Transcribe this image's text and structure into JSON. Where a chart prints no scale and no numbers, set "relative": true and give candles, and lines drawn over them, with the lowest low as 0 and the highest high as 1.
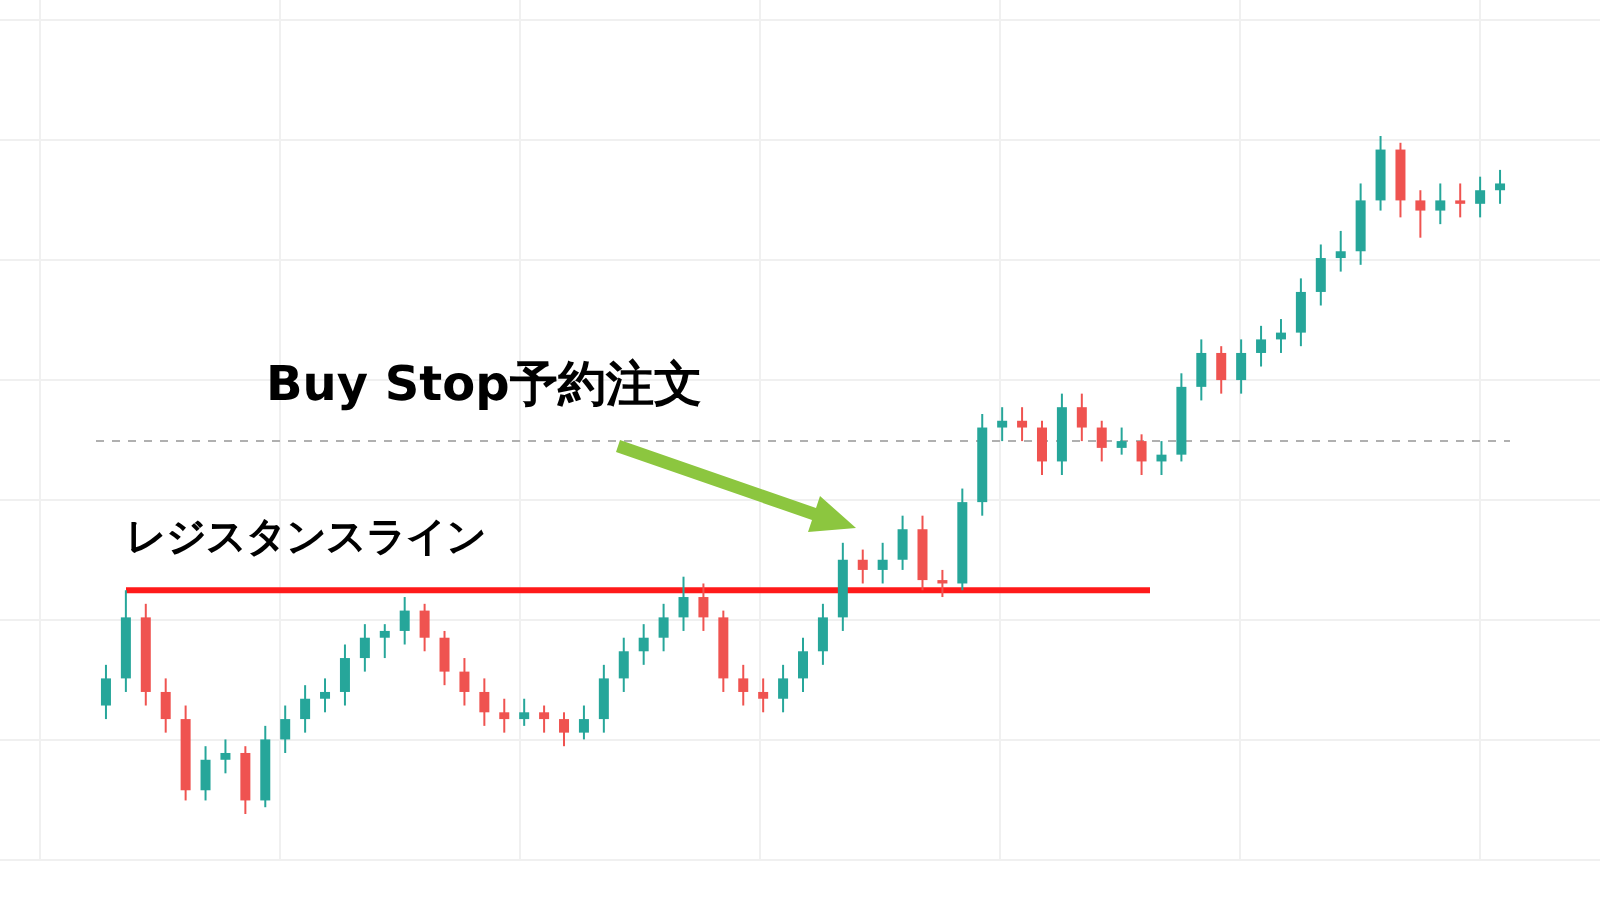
{
  "chart_data": {
    "type": "candlestick",
    "relative": true,
    "grid": true,
    "categories": [
      null,
      null,
      null,
      null,
      null,
      null,
      null,
      null,
      null,
      null,
      null,
      null,
      null,
      null,
      null,
      null,
      null,
      null,
      null,
      null,
      null,
      null,
      null,
      null,
      null,
      null,
      null,
      null,
      null,
      null,
      null,
      null,
      null,
      null,
      null,
      null,
      null,
      null,
      null,
      null,
      null,
      null,
      null,
      null,
      null,
      null,
      null,
      null,
      null,
      null,
      null,
      null,
      null,
      null,
      null,
      null,
      null,
      null,
      null,
      null,
      null,
      null,
      null,
      null,
      null,
      null,
      null,
      null,
      null,
      null,
      null
    ],
    "ohlc": [
      [
        0.16,
        0.22,
        0.14,
        0.2
      ],
      [
        0.2,
        0.33,
        0.18,
        0.29
      ],
      [
        0.29,
        0.31,
        0.16,
        0.18
      ],
      [
        0.18,
        0.2,
        0.12,
        0.14
      ],
      [
        0.14,
        0.16,
        0.02,
        0.035
      ],
      [
        0.035,
        0.1,
        0.02,
        0.08
      ],
      [
        0.08,
        0.11,
        0.06,
        0.09
      ],
      [
        0.09,
        0.1,
        0.0,
        0.02
      ],
      [
        0.02,
        0.13,
        0.01,
        0.11
      ],
      [
        0.11,
        0.16,
        0.09,
        0.14
      ],
      [
        0.14,
        0.19,
        0.12,
        0.17
      ],
      [
        0.17,
        0.2,
        0.15,
        0.18
      ],
      [
        0.18,
        0.25,
        0.16,
        0.23
      ],
      [
        0.23,
        0.28,
        0.21,
        0.26
      ],
      [
        0.26,
        0.28,
        0.23,
        0.27
      ],
      [
        0.27,
        0.32,
        0.25,
        0.3
      ],
      [
        0.3,
        0.31,
        0.24,
        0.26
      ],
      [
        0.26,
        0.27,
        0.19,
        0.21
      ],
      [
        0.21,
        0.23,
        0.16,
        0.18
      ],
      [
        0.18,
        0.2,
        0.13,
        0.15
      ],
      [
        0.15,
        0.17,
        0.12,
        0.14
      ],
      [
        0.14,
        0.17,
        0.13,
        0.15
      ],
      [
        0.15,
        0.16,
        0.12,
        0.14
      ],
      [
        0.14,
        0.15,
        0.1,
        0.12
      ],
      [
        0.12,
        0.16,
        0.11,
        0.14
      ],
      [
        0.14,
        0.22,
        0.12,
        0.2
      ],
      [
        0.2,
        0.26,
        0.18,
        0.24
      ],
      [
        0.24,
        0.28,
        0.22,
        0.26
      ],
      [
        0.26,
        0.31,
        0.24,
        0.29
      ],
      [
        0.29,
        0.35,
        0.27,
        0.32
      ],
      [
        0.32,
        0.34,
        0.27,
        0.29
      ],
      [
        0.29,
        0.3,
        0.18,
        0.2
      ],
      [
        0.2,
        0.22,
        0.16,
        0.18
      ],
      [
        0.18,
        0.2,
        0.15,
        0.17
      ],
      [
        0.17,
        0.22,
        0.15,
        0.2
      ],
      [
        0.2,
        0.26,
        0.18,
        0.24
      ],
      [
        0.24,
        0.31,
        0.22,
        0.29
      ],
      [
        0.29,
        0.4,
        0.27,
        0.375
      ],
      [
        0.375,
        0.39,
        0.34,
        0.36
      ],
      [
        0.36,
        0.4,
        0.34,
        0.375
      ],
      [
        0.375,
        0.44,
        0.36,
        0.42
      ],
      [
        0.42,
        0.44,
        0.33,
        0.345
      ],
      [
        0.345,
        0.36,
        0.32,
        0.34
      ],
      [
        0.34,
        0.48,
        0.33,
        0.46
      ],
      [
        0.46,
        0.59,
        0.44,
        0.57
      ],
      [
        0.57,
        0.6,
        0.55,
        0.58
      ],
      [
        0.58,
        0.6,
        0.55,
        0.57
      ],
      [
        0.57,
        0.58,
        0.5,
        0.52
      ],
      [
        0.52,
        0.62,
        0.5,
        0.6
      ],
      [
        0.6,
        0.62,
        0.55,
        0.57
      ],
      [
        0.57,
        0.58,
        0.52,
        0.54
      ],
      [
        0.54,
        0.57,
        0.53,
        0.55
      ],
      [
        0.55,
        0.56,
        0.5,
        0.52
      ],
      [
        0.52,
        0.55,
        0.5,
        0.53
      ],
      [
        0.53,
        0.65,
        0.52,
        0.63
      ],
      [
        0.63,
        0.7,
        0.61,
        0.68
      ],
      [
        0.68,
        0.69,
        0.62,
        0.64
      ],
      [
        0.64,
        0.7,
        0.62,
        0.68
      ],
      [
        0.68,
        0.72,
        0.66,
        0.7
      ],
      [
        0.7,
        0.73,
        0.68,
        0.71
      ],
      [
        0.71,
        0.79,
        0.69,
        0.77
      ],
      [
        0.77,
        0.84,
        0.75,
        0.82
      ],
      [
        0.82,
        0.86,
        0.8,
        0.83
      ],
      [
        0.83,
        0.93,
        0.81,
        0.905
      ],
      [
        0.905,
        1.0,
        0.89,
        0.98
      ],
      [
        0.98,
        0.99,
        0.88,
        0.905
      ],
      [
        0.905,
        0.92,
        0.85,
        0.89
      ],
      [
        0.89,
        0.93,
        0.87,
        0.905
      ],
      [
        0.905,
        0.93,
        0.88,
        0.9
      ],
      [
        0.9,
        0.94,
        0.88,
        0.92
      ],
      [
        0.92,
        0.95,
        0.9,
        0.93
      ]
    ],
    "colors": [
      "#26a69a",
      "#26a69a",
      "#ef5350",
      "#ef5350",
      "#ef5350",
      "#26a69a",
      "#26a69a",
      "#ef5350",
      "#26a69a",
      "#26a69a",
      "#26a69a",
      "#26a69a",
      "#26a69a",
      "#26a69a",
      "#26a69a",
      "#26a69a",
      "#ef5350",
      "#ef5350",
      "#ef5350",
      "#ef5350",
      "#ef5350",
      "#26a69a",
      "#ef5350",
      "#ef5350",
      "#26a69a",
      "#26a69a",
      "#26a69a",
      "#26a69a",
      "#26a69a",
      "#26a69a",
      "#ef5350",
      "#ef5350",
      "#ef5350",
      "#ef5350",
      "#26a69a",
      "#26a69a",
      "#26a69a",
      "#26a69a",
      "#ef5350",
      "#26a69a",
      "#26a69a",
      "#ef5350",
      "#ef5350",
      "#26a69a",
      "#26a69a",
      "#26a69a",
      "#ef5350",
      "#ef5350",
      "#26a69a",
      "#ef5350",
      "#ef5350",
      "#26a69a",
      "#ef5350",
      "#26a69a",
      "#26a69a",
      "#26a69a",
      "#ef5350",
      "#26a69a",
      "#26a69a",
      "#26a69a",
      "#26a69a",
      "#26a69a",
      "#26a69a",
      "#26a69a",
      "#26a69a",
      "#ef5350",
      "#ef5350",
      "#26a69a",
      "#ef5350",
      "#26a69a",
      "#26a69a"
    ],
    "ref_lines": [
      {
        "axis": "y",
        "value": 0.33,
        "label": "レジスタンスライン",
        "color": "#ff1a1a"
      },
      {
        "axis": "y",
        "value": 0.55,
        "color": "#b0b0b0",
        "line_style": "dashed"
      }
    ],
    "annotations": [
      "Buy Stop予約注文"
    ]
  }
}
